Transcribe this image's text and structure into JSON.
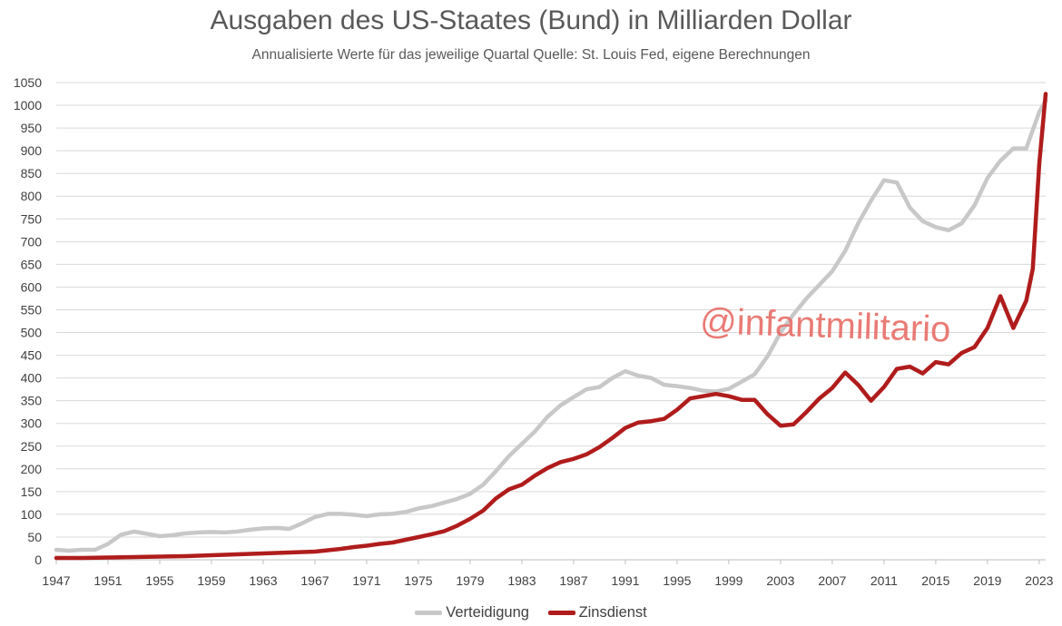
{
  "chart_data": {
    "type": "line",
    "title": "Ausgaben des US-Staates (Bund) in Milliarden Dollar",
    "subtitle": "Annualisierte Werte für das jeweilige Quartal Quelle: St. Louis Fed, eigene Berechnungen",
    "xlabel": "",
    "ylabel": "",
    "xlim": [
      1947,
      2023.5
    ],
    "ylim": [
      0,
      1050
    ],
    "y_ticks": [
      0,
      50,
      100,
      150,
      200,
      250,
      300,
      350,
      400,
      450,
      500,
      550,
      600,
      650,
      700,
      750,
      800,
      850,
      900,
      950,
      1000,
      1050
    ],
    "x_ticks": [
      "1947",
      "1951",
      "1955",
      "1959",
      "1963",
      "1967",
      "1971",
      "1975",
      "1979",
      "1983",
      "1987",
      "1991",
      "1995",
      "1999",
      "2003",
      "2007",
      "2011",
      "2015",
      "2019",
      "2023"
    ],
    "grid": true,
    "legend_position": "bottom",
    "annotation": "@infantmilitario",
    "series": [
      {
        "name": "Verteidigung",
        "color": "#c8c8c8",
        "points": [
          [
            1947,
            22
          ],
          [
            1948,
            20
          ],
          [
            1949,
            22
          ],
          [
            1950,
            22
          ],
          [
            1951,
            35
          ],
          [
            1952,
            55
          ],
          [
            1953,
            62
          ],
          [
            1954,
            57
          ],
          [
            1955,
            52
          ],
          [
            1956,
            54
          ],
          [
            1957,
            58
          ],
          [
            1958,
            60
          ],
          [
            1959,
            61
          ],
          [
            1960,
            60
          ],
          [
            1961,
            62
          ],
          [
            1962,
            66
          ],
          [
            1963,
            69
          ],
          [
            1964,
            70
          ],
          [
            1965,
            68
          ],
          [
            1966,
            80
          ],
          [
            1967,
            94
          ],
          [
            1968,
            101
          ],
          [
            1969,
            101
          ],
          [
            1970,
            99
          ],
          [
            1971,
            96
          ],
          [
            1972,
            100
          ],
          [
            1973,
            101
          ],
          [
            1974,
            105
          ],
          [
            1975,
            113
          ],
          [
            1976,
            118
          ],
          [
            1977,
            126
          ],
          [
            1978,
            134
          ],
          [
            1979,
            145
          ],
          [
            1980,
            165
          ],
          [
            1981,
            195
          ],
          [
            1982,
            228
          ],
          [
            1983,
            255
          ],
          [
            1984,
            282
          ],
          [
            1985,
            315
          ],
          [
            1986,
            340
          ],
          [
            1987,
            358
          ],
          [
            1988,
            375
          ],
          [
            1989,
            380
          ],
          [
            1990,
            400
          ],
          [
            1991,
            415
          ],
          [
            1992,
            405
          ],
          [
            1993,
            400
          ],
          [
            1994,
            385
          ],
          [
            1995,
            382
          ],
          [
            1996,
            378
          ],
          [
            1997,
            372
          ],
          [
            1998,
            370
          ],
          [
            1999,
            376
          ],
          [
            2000,
            392
          ],
          [
            2001,
            408
          ],
          [
            2002,
            448
          ],
          [
            2003,
            500
          ],
          [
            2004,
            540
          ],
          [
            2005,
            575
          ],
          [
            2006,
            605
          ],
          [
            2007,
            635
          ],
          [
            2008,
            680
          ],
          [
            2009,
            740
          ],
          [
            2010,
            790
          ],
          [
            2011,
            835
          ],
          [
            2012,
            830
          ],
          [
            2013,
            775
          ],
          [
            2014,
            745
          ],
          [
            2015,
            732
          ],
          [
            2016,
            725
          ],
          [
            2017,
            740
          ],
          [
            2018,
            780
          ],
          [
            2019,
            840
          ],
          [
            2020,
            878
          ],
          [
            2021,
            905
          ],
          [
            2022,
            905
          ],
          [
            2023,
            985
          ],
          [
            2023.5,
            1010
          ]
        ]
      },
      {
        "name": "Zinsdienst",
        "color": "#b01c1c",
        "points": [
          [
            1947,
            4
          ],
          [
            1949,
            4
          ],
          [
            1951,
            5
          ],
          [
            1953,
            6
          ],
          [
            1955,
            7
          ],
          [
            1957,
            8
          ],
          [
            1959,
            10
          ],
          [
            1961,
            12
          ],
          [
            1963,
            14
          ],
          [
            1965,
            16
          ],
          [
            1967,
            18
          ],
          [
            1969,
            24
          ],
          [
            1970,
            28
          ],
          [
            1971,
            31
          ],
          [
            1972,
            35
          ],
          [
            1973,
            38
          ],
          [
            1974,
            44
          ],
          [
            1975,
            50
          ],
          [
            1976,
            56
          ],
          [
            1977,
            63
          ],
          [
            1978,
            75
          ],
          [
            1979,
            90
          ],
          [
            1980,
            108
          ],
          [
            1981,
            135
          ],
          [
            1982,
            155
          ],
          [
            1983,
            165
          ],
          [
            1984,
            185
          ],
          [
            1985,
            202
          ],
          [
            1986,
            215
          ],
          [
            1987,
            222
          ],
          [
            1988,
            232
          ],
          [
            1989,
            248
          ],
          [
            1990,
            268
          ],
          [
            1991,
            290
          ],
          [
            1992,
            302
          ],
          [
            1993,
            305
          ],
          [
            1994,
            310
          ],
          [
            1995,
            330
          ],
          [
            1996,
            355
          ],
          [
            1997,
            360
          ],
          [
            1998,
            365
          ],
          [
            1999,
            360
          ],
          [
            2000,
            352
          ],
          [
            2001,
            352
          ],
          [
            2002,
            320
          ],
          [
            2003,
            295
          ],
          [
            2004,
            298
          ],
          [
            2005,
            325
          ],
          [
            2006,
            355
          ],
          [
            2007,
            378
          ],
          [
            2008,
            412
          ],
          [
            2009,
            385
          ],
          [
            2010,
            350
          ],
          [
            2011,
            380
          ],
          [
            2012,
            420
          ],
          [
            2013,
            425
          ],
          [
            2014,
            410
          ],
          [
            2015,
            435
          ],
          [
            2016,
            430
          ],
          [
            2017,
            455
          ],
          [
            2018,
            468
          ],
          [
            2019,
            510
          ],
          [
            2020,
            580
          ],
          [
            2021,
            510
          ],
          [
            2022,
            570
          ],
          [
            2022.5,
            640
          ],
          [
            2023,
            870
          ],
          [
            2023.5,
            1025
          ]
        ]
      }
    ]
  }
}
